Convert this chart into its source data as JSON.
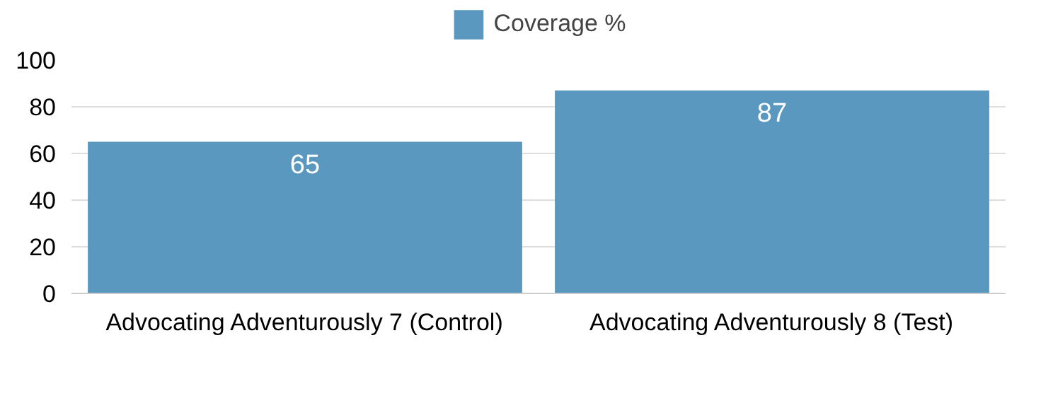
{
  "chart_data": {
    "type": "bar",
    "categories": [
      "Advocating Adventurously 7 (Control)",
      "Advocating Adventurously 8 (Test)"
    ],
    "series": [
      {
        "name": "Coverage %",
        "color": "#5a98bf",
        "values": [
          65,
          87
        ]
      }
    ],
    "ylim": [
      0,
      100
    ],
    "yticks": [
      0,
      20,
      40,
      60,
      80,
      100
    ],
    "grid": "y",
    "legend": "top",
    "data_labels": true
  }
}
